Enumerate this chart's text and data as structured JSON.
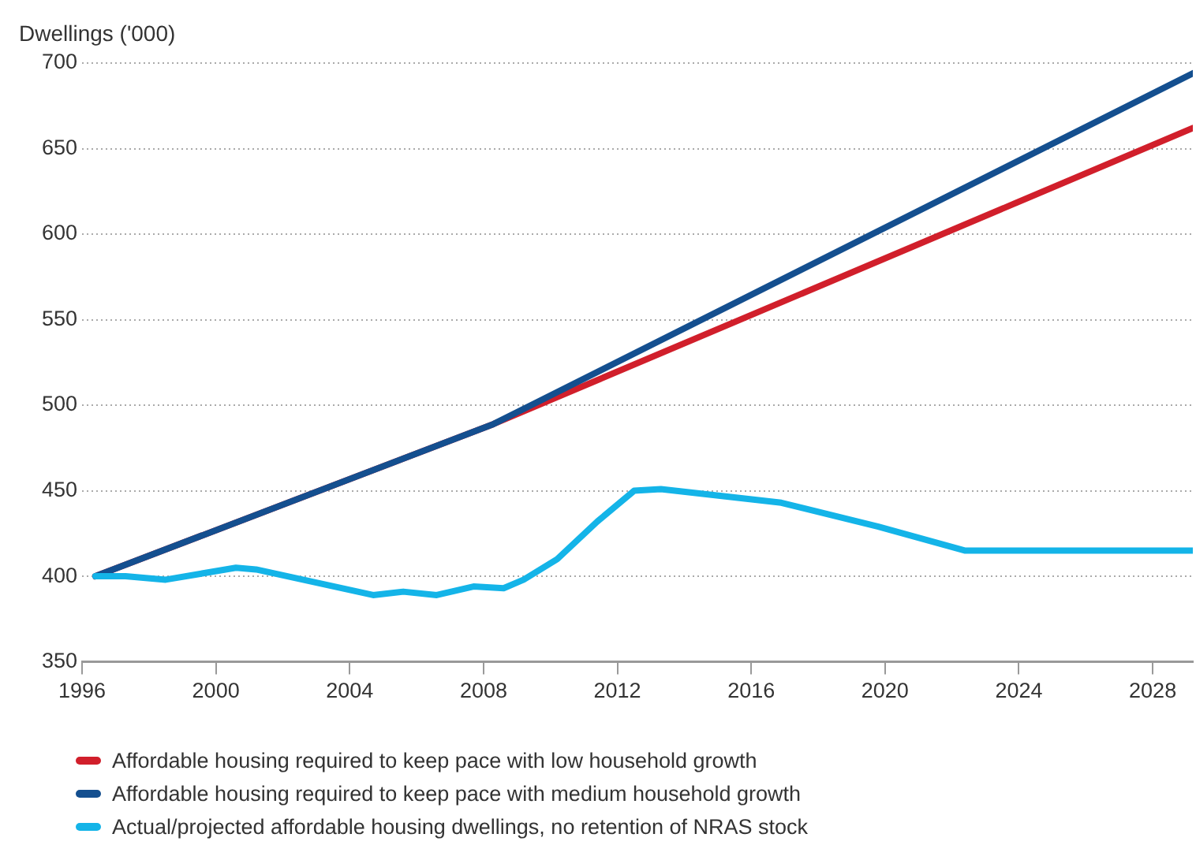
{
  "chart_data": {
    "type": "line",
    "ylabel": "Dwellings ('000)",
    "xlim": [
      1996,
      2029.2
    ],
    "xticks": [
      1996,
      2000,
      2004,
      2008,
      2012,
      2016,
      2020,
      2024,
      2028
    ],
    "ylim": [
      350,
      700
    ],
    "yticks": [
      350,
      400,
      450,
      500,
      550,
      600,
      650,
      700
    ],
    "grid": "y",
    "legend": "bottom",
    "marker": "none",
    "line_style": "solid",
    "series": [
      {
        "name": "Affordable housing required to keep pace with low household growth",
        "color": "#d11f2b",
        "x": [
          1996.4,
          2008.3,
          2029.2
        ],
        "values": [
          400,
          489,
          662
        ]
      },
      {
        "name": "Affordable housing required to keep pace with medium household growth",
        "color": "#144f8f",
        "x": [
          1996.4,
          2008.3,
          2029.2
        ],
        "values": [
          400,
          489,
          694
        ]
      },
      {
        "name": "Actual/projected affordable housing dwellings, no retention of NRAS stock",
        "color": "#14b4e8",
        "x": [
          1996.4,
          1997.3,
          1998.5,
          2000.6,
          2001.2,
          2004.7,
          2005.6,
          2006.6,
          2007.7,
          2008.6,
          2009.2,
          2010.2,
          2011.4,
          2012.5,
          2013.3,
          2016.9,
          2019.8,
          2022.4,
          2029.2
        ],
        "values": [
          400,
          400,
          398,
          405,
          404,
          389,
          391,
          389,
          394,
          393,
          398,
          410,
          432,
          450,
          451,
          443,
          429,
          415,
          415
        ]
      }
    ]
  }
}
